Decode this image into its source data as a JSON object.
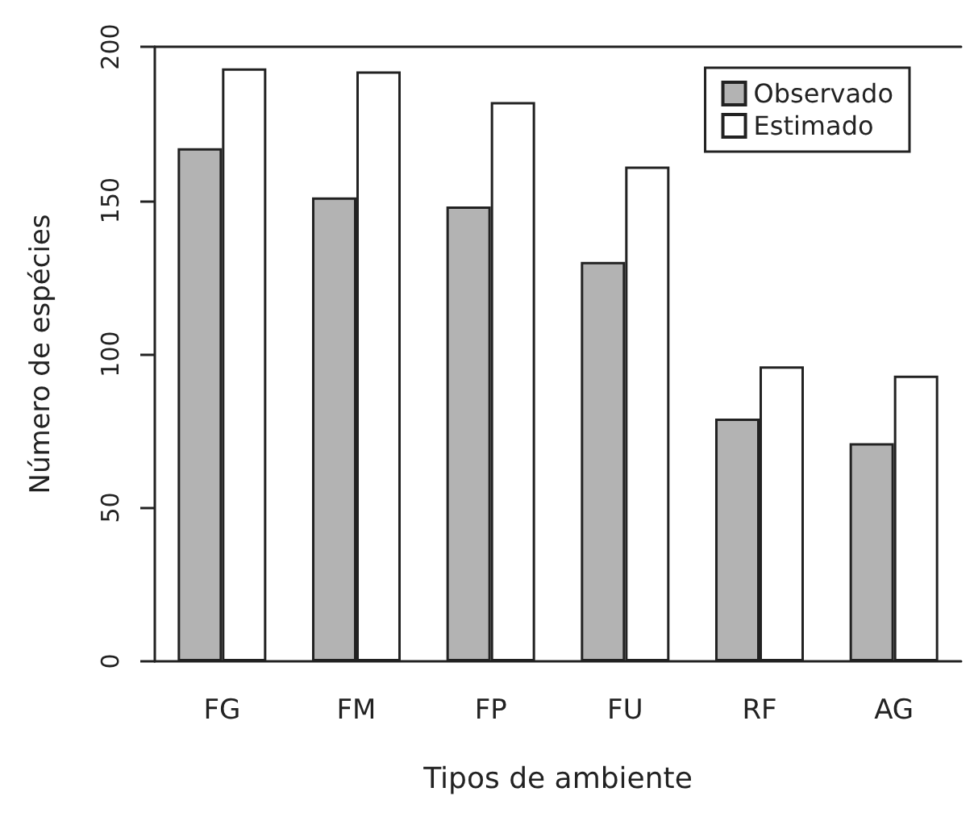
{
  "chart_data": {
    "type": "bar",
    "xlabel": "Tipos de ambiente",
    "ylabel": "Número de espécies",
    "categories": [
      "FG",
      "FM",
      "FP",
      "FU",
      "RF",
      "AG"
    ],
    "series": [
      {
        "name": "Observado",
        "color": "#b3b3b3",
        "values": [
          167,
          151,
          148,
          130,
          79,
          71
        ]
      },
      {
        "name": "Estimado",
        "color": "#ffffff",
        "values": [
          193,
          192,
          182,
          161,
          96,
          93
        ]
      }
    ],
    "ylim": [
      0,
      200
    ],
    "yticks": [
      0,
      50,
      100,
      150,
      200
    ],
    "grid": false,
    "legend": "top right"
  }
}
